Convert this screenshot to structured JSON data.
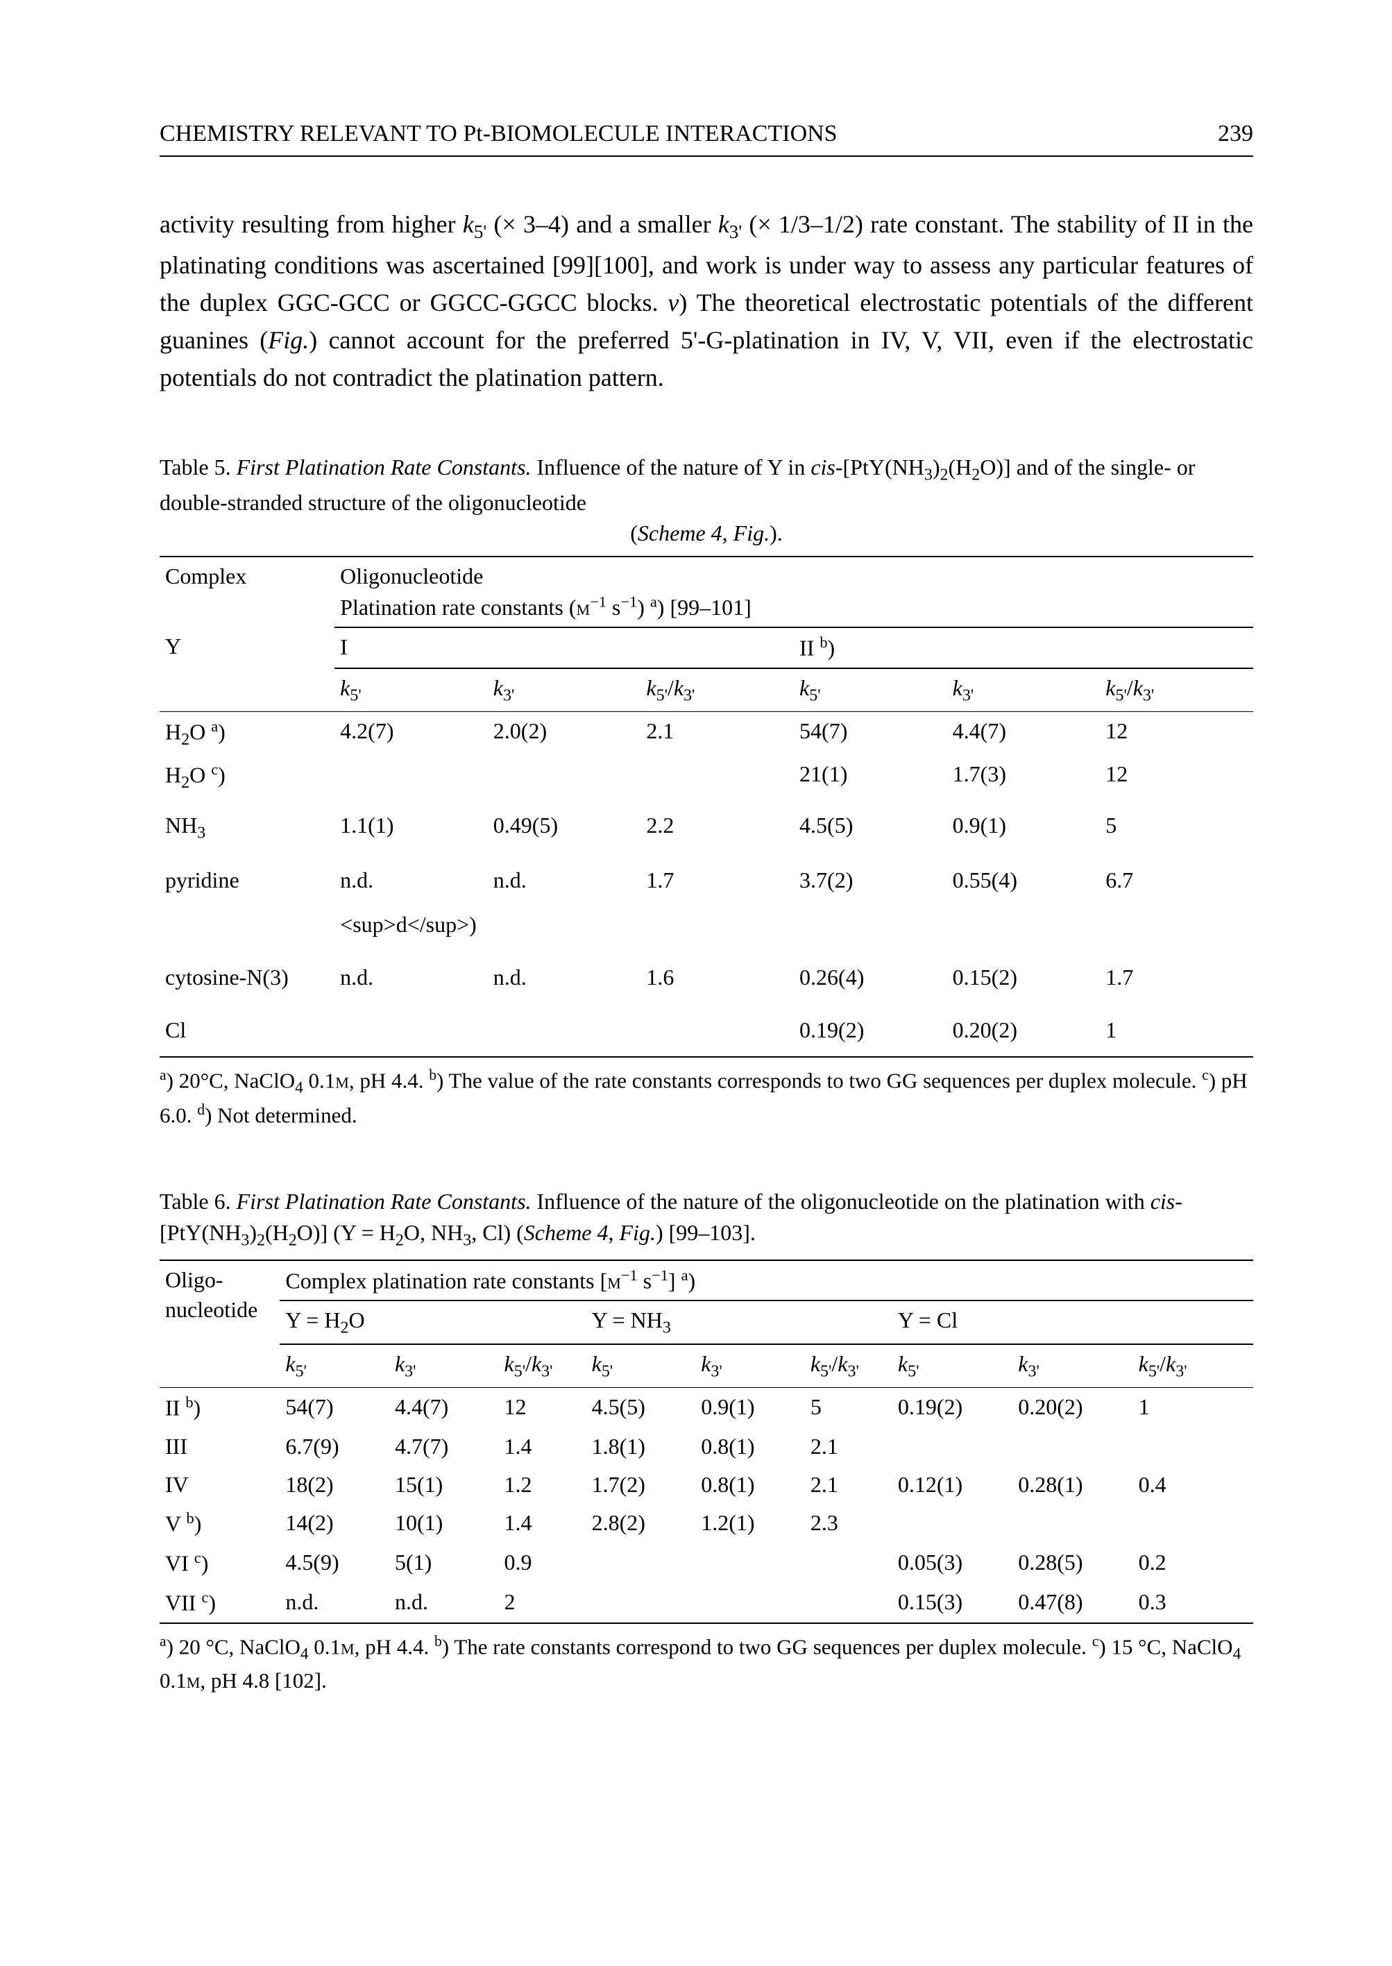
{
  "header": {
    "title": "CHEMISTRY RELEVANT TO Pt-BIOMOLECULE INTERACTIONS",
    "page_number": "239"
  },
  "paragraph": {
    "text_html": "activity resulting from higher <span class='i'>k</span><sub>5'</sub> (× 3–4) and a smaller <span class='i'>k</span><sub>3'</sub> (× 1/3–1/2) rate constant. The stability of II in the platinating conditions was ascertained [99][100], and work is under way to assess any particular features of the duplex GGC-GCC or GGCC-GGCC blocks. <span class='i'>v</span>) The theoretical electrostatic potentials of the different guanines (<span class='i'>Fig.</span>) cannot account for the preferred 5'-G-platination in IV, V, VII, even if the electrostatic potentials do not contradict the platination pattern."
  },
  "table5": {
    "caption_html": "Table 5. <span class='i'>First Platination Rate Constants.</span> Influence of the nature of Y in <span class='i'>cis</span>-[PtY(NH<sub>3</sub>)<sub>2</sub>(H<sub>2</sub>O)] and of the single- or double-stranded structure of the oligonucleotide",
    "caption_center_html": "(<span class='i'>Scheme 4</span>, <span class='i'>Fig.</span>).",
    "head": {
      "complex": "Complex",
      "oligo": "Oligonucleotide",
      "rate_html": "Platination rate constants (<span style='font-variant:small-caps'>m</span><sup>−1</sup> s<sup>−1</sup>) <sup>a</sup>) [99–101]",
      "Y": "Y",
      "I": "I",
      "II_html": "II <sup>b</sup>)",
      "k5_html": "<span class='i'>k</span><sub>5'</sub>",
      "k3_html": "<span class='i'>k</span><sub>3'</sub>",
      "ratio_html": "<span class='i'>k</span><sub>5'</sub>/<span class='i'>k</span><sub>3'</sub>"
    },
    "rows": [
      {
        "y_html": "H<sub>2</sub>O <sup>a</sup>)",
        "I_k5": "4.2(7)",
        "I_k3": "2.0(2)",
        "I_r": "2.1",
        "II_k5": "54(7)",
        "II_k3": "4.4(7)",
        "II_r": "12"
      },
      {
        "y_html": "H<sub>2</sub>O <sup>c</sup>)",
        "I_k5": "",
        "I_k3": "",
        "I_r": "",
        "II_k5": "21(1)",
        "II_k3": "1.7(3)",
        "II_r": "12"
      },
      {
        "y_html": "NH<sub>3</sub>",
        "I_k5": "1.1(1)",
        "I_k3": "0.49(5)",
        "I_r": "2.2",
        "II_k5": "4.5(5)",
        "II_k3": "0.9(1)",
        "II_r": "5",
        "spaced": true
      },
      {
        "y_html": "pyridine",
        "I_k5": "n.d. <sup>d</sup>)",
        "I_k3": "n.d.",
        "I_r": "1.7",
        "II_k5": "3.7(2)",
        "II_k3": "0.55(4)",
        "II_r": "6.7",
        "spaced": true
      },
      {
        "y_html": "cytosine-N(3)",
        "I_k5": "n.d.",
        "I_k3": "n.d.",
        "I_r": "1.6",
        "II_k5": "0.26(4)",
        "II_k3": "0.15(2)",
        "II_r": "1.7",
        "spaced": true
      },
      {
        "y_html": "Cl",
        "I_k5": "",
        "I_k3": "",
        "I_r": "",
        "II_k5": "0.19(2)",
        "II_k3": "0.20(2)",
        "II_r": "1",
        "spaced": true
      }
    ],
    "footnotes_html": "<sup>a</sup>) 20°C, NaClO<sub>4</sub> 0.1<span style='font-variant:small-caps'>m</span>, pH 4.4. <sup>b</sup>) The value of the rate constants corresponds to two GG sequences per duplex molecule. <sup>c</sup>) pH 6.0. <sup>d</sup>) Not determined."
  },
  "table6": {
    "caption_html": "Table 6. <span class='i'>First Platination Rate Constants.</span> Influence of the nature of the oligonucleotide on the platination with <span class='i'>cis</span>-[PtY(NH<sub>3</sub>)<sub>2</sub>(H<sub>2</sub>O)] (Y = H<sub>2</sub>O, NH<sub>3</sub>, Cl) (<span class='i'>Scheme 4</span>, <span class='i'>Fig.</span>) [99–103].",
    "head": {
      "oligo_html": "Oligo-<br>nucleotide",
      "rate_html": "Complex platination rate constants [<span style='font-variant:small-caps'>m</span><sup>−1</sup> s<sup>−1</sup>] <sup>a</sup>)",
      "YH2O_html": "Y = H<sub>2</sub>O",
      "YNH3_html": "Y = NH<sub>3</sub>",
      "YCl_html": "Y = Cl",
      "k5_html": "<span class='i'>k</span><sub>5'</sub>",
      "k3_html": "<span class='i'>k</span><sub>3'</sub>",
      "ratio_html": "<span class='i'>k</span><sub>5'</sub>/<span class='i'>k</span><sub>3'</sub>"
    },
    "rows": [
      {
        "o_html": "II <sup>b</sup>)",
        "h_k5": "54(7)",
        "h_k3": "4.4(7)",
        "h_r": "12",
        "n_k5": "4.5(5)",
        "n_k3": "0.9(1)",
        "n_r": "5",
        "c_k5": "0.19(2)",
        "c_k3": "0.20(2)",
        "c_r": "1"
      },
      {
        "o_html": "III",
        "h_k5": "6.7(9)",
        "h_k3": "4.7(7)",
        "h_r": "1.4",
        "n_k5": "1.8(1)",
        "n_k3": "0.8(1)",
        "n_r": "2.1",
        "c_k5": "",
        "c_k3": "",
        "c_r": ""
      },
      {
        "o_html": "IV",
        "h_k5": "18(2)",
        "h_k3": "15(1)",
        "h_r": "1.2",
        "n_k5": "1.7(2)",
        "n_k3": "0.8(1)",
        "n_r": "2.1",
        "c_k5": "0.12(1)",
        "c_k3": "0.28(1)",
        "c_r": "0.4"
      },
      {
        "o_html": "V <sup>b</sup>)",
        "h_k5": "14(2)",
        "h_k3": "10(1)",
        "h_r": "1.4",
        "n_k5": "2.8(2)",
        "n_k3": "1.2(1)",
        "n_r": "2.3",
        "c_k5": "",
        "c_k3": "",
        "c_r": ""
      },
      {
        "o_html": "VI <sup>c</sup>)",
        "h_k5": "4.5(9)",
        "h_k3": "5(1)",
        "h_r": "0.9",
        "n_k5": "",
        "n_k3": "",
        "n_r": "",
        "c_k5": "0.05(3)",
        "c_k3": "0.28(5)",
        "c_r": "0.2"
      },
      {
        "o_html": "VII <sup>c</sup>)",
        "h_k5": "n.d.",
        "h_k3": "n.d.",
        "h_r": "2",
        "n_k5": "",
        "n_k3": "",
        "n_r": "",
        "c_k5": "0.15(3)",
        "c_k3": "0.47(8)",
        "c_r": "0.3"
      }
    ],
    "footnotes_html": "<sup>a</sup>) 20 °C, NaClO<sub>4</sub> 0.1<span style='font-variant:small-caps'>m</span>, pH 4.4. <sup>b</sup>) The rate constants correspond to two GG sequences per duplex molecule. <sup>c</sup>) 15 °C, NaClO<sub>4</sub> 0.1<span style='font-variant:small-caps'>m</span>, pH 4.8 [102]."
  }
}
